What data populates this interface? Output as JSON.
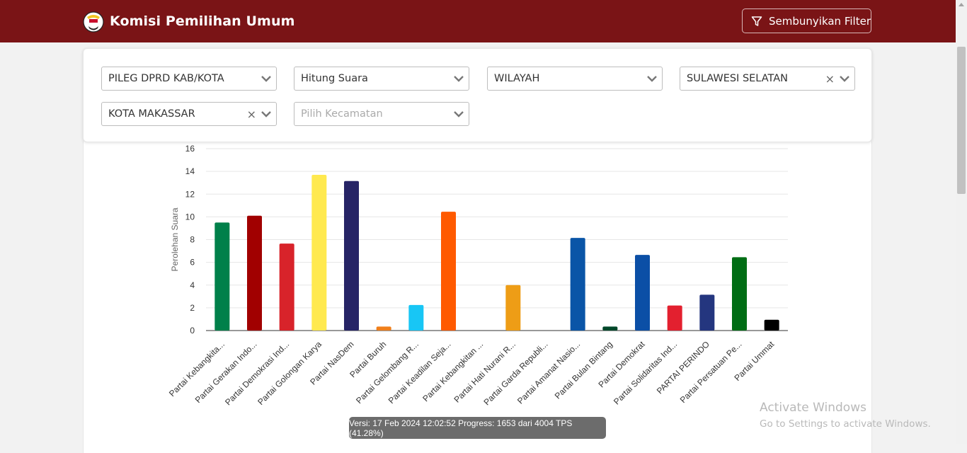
{
  "header": {
    "brand": "Komisi Pemilihan Umum",
    "filter_button": "Sembunyikan Filter",
    "logo_icon": "kpu-logo-icon",
    "filter_icon": "funnel-icon"
  },
  "filters": [
    {
      "value": "PILEG DPRD KAB/KOTA",
      "placeholder": false,
      "clearable": false
    },
    {
      "value": "Hitung Suara",
      "placeholder": false,
      "clearable": false
    },
    {
      "value": "WILAYAH",
      "placeholder": false,
      "clearable": false
    },
    {
      "value": "SULAWESI SELATAN",
      "placeholder": false,
      "clearable": true
    },
    {
      "value": "KOTA MAKASSAR",
      "placeholder": false,
      "clearable": true
    },
    {
      "value": "Pilih Kecamatan",
      "placeholder": true,
      "clearable": false
    }
  ],
  "chart_data": {
    "type": "bar",
    "title": "",
    "xlabel": "",
    "ylabel": "Perolehan Suara",
    "ylim": [
      0,
      16
    ],
    "yticks": [
      0,
      2,
      4,
      6,
      8,
      10,
      12,
      14,
      16
    ],
    "grid": true,
    "legend": "none",
    "categories": [
      "Partai Kebangkita...",
      "Partai Gerakan Indo...",
      "Partai Demokrasi Ind...",
      "Partai Golongan Karya",
      "Partai NasDem",
      "Partai Buruh",
      "Partai Gelombang R...",
      "Partai Keadilan Seja...",
      "Partai Kebangkitan ...",
      "Partai Hati Nurani R...",
      "Partai Garda Republi...",
      "Partai Amanat Nasio...",
      "Partai Bulan Bintang",
      "Partai Demokrat",
      "Partai Solidaritas Ind...",
      "PARTAI PERINDO",
      "Partai Persatuan Pe...",
      "Partai Ummat"
    ],
    "values": [
      9.5,
      10.1,
      7.65,
      13.7,
      13.15,
      0.35,
      2.25,
      10.45,
      0,
      4.0,
      0,
      8.15,
      0.35,
      6.65,
      2.2,
      3.15,
      6.45,
      0.95
    ],
    "colors": [
      "#00804a",
      "#a10000",
      "#d8232a",
      "#ffe94f",
      "#262466",
      "#f07f1b",
      "#18c6f5",
      "#ff5a00",
      "#00823f",
      "#ee9d16",
      "#c40000",
      "#0a55a7",
      "#00472a",
      "#0b4fa6",
      "#e3202f",
      "#24367f",
      "#006d14",
      "#000000"
    ]
  },
  "status": {
    "text": "Versi: 17 Feb 2024 12:02:52 Progress: 1653 dari 4004 TPS (41.28%)"
  },
  "watermark": {
    "title": "Activate Windows",
    "subtitle": "Go to Settings to activate Windows."
  }
}
